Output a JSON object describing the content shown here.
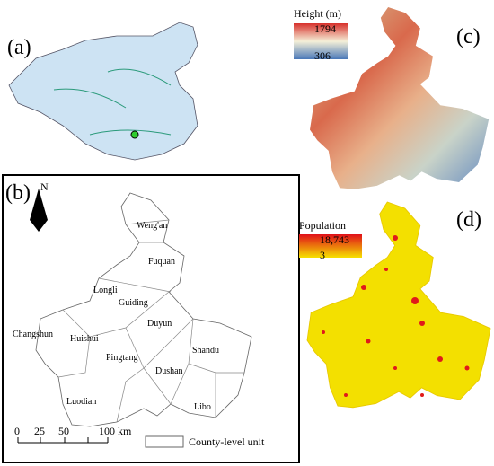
{
  "panels": {
    "a": {
      "label": "(a)"
    },
    "b": {
      "label": "(b)",
      "north": "N",
      "counties": [
        "Weng'an",
        "Fuquan",
        "Longli",
        "Guiding",
        "Duyun",
        "Changshun",
        "Huishui",
        "Pingtang",
        "Shandu",
        "Dushan",
        "Luodian",
        "Libo"
      ],
      "scale_bar": [
        "0",
        "25",
        "50",
        "100 km"
      ],
      "legend": "County-level unit"
    },
    "c": {
      "label": "(c)",
      "legend": {
        "title": "Height (m)",
        "max": "1794",
        "min": "306"
      }
    },
    "d": {
      "label": "(d)",
      "legend": {
        "title": "Population",
        "max": "18,743",
        "min": "3"
      }
    }
  }
}
